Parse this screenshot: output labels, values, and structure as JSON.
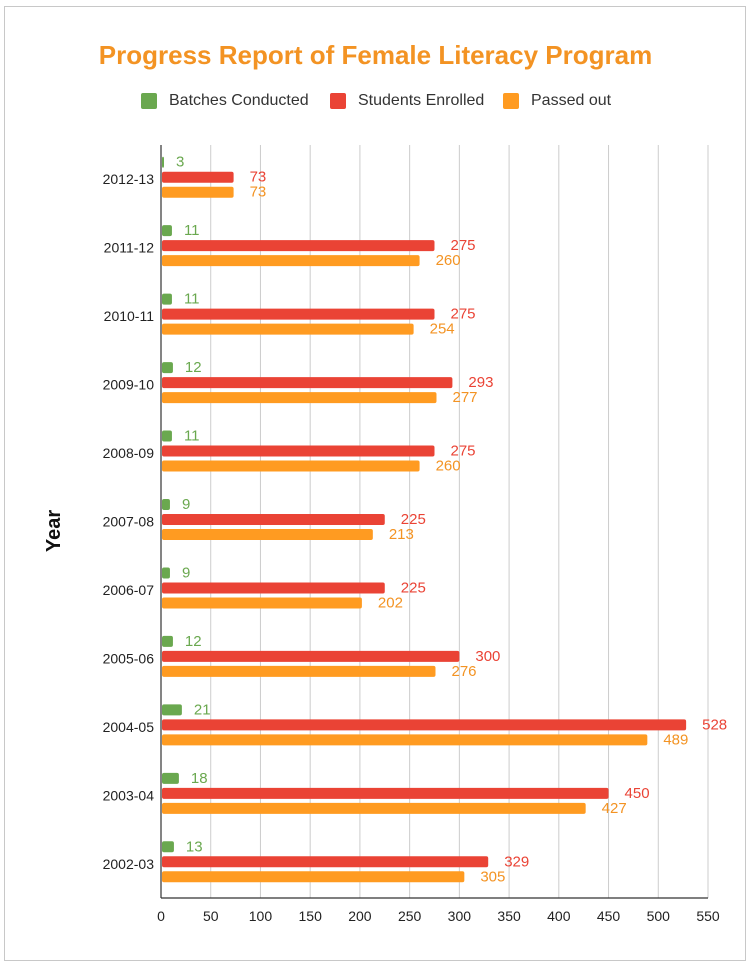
{
  "chart_data": {
    "type": "bar",
    "orientation": "horizontal",
    "title": "Progress Report of Female Literacy Program",
    "xlabel": "",
    "ylabel": "Year",
    "xlim": [
      0,
      550
    ],
    "xticks": [
      0,
      50,
      100,
      150,
      200,
      250,
      300,
      350,
      400,
      450,
      500,
      550
    ],
    "grid": true,
    "legend_position": "top",
    "categories": [
      "2012-13",
      "2011-12",
      "2010-11",
      "2009-10",
      "2008-09",
      "2007-08",
      "2006-07",
      "2005-06",
      "2004-05",
      "2003-04",
      "2002-03"
    ],
    "series": [
      {
        "name": "Batches Conducted",
        "color": "#6aa84f",
        "values": [
          3,
          11,
          11,
          12,
          11,
          9,
          9,
          12,
          21,
          18,
          13
        ]
      },
      {
        "name": "Students Enrolled",
        "color": "#ea4335",
        "values": [
          73,
          275,
          275,
          293,
          275,
          225,
          225,
          300,
          528,
          450,
          329
        ]
      },
      {
        "name": "Passed out",
        "color": "#ff9b21",
        "values": [
          73,
          260,
          254,
          277,
          260,
          213,
          202,
          276,
          489,
          427,
          305
        ]
      }
    ]
  }
}
